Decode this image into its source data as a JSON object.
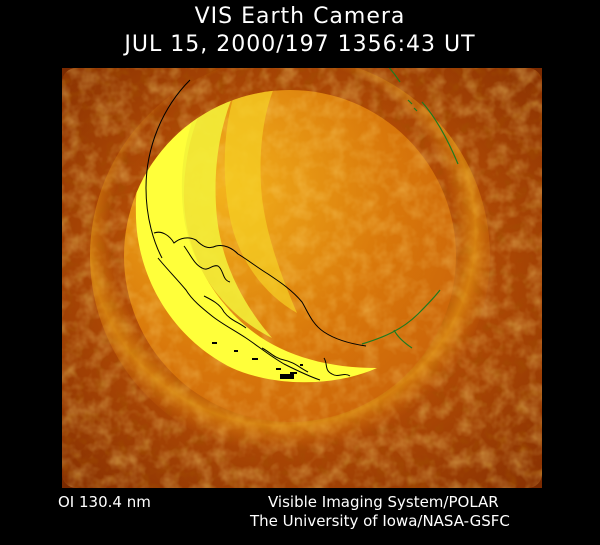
{
  "header": {
    "title": "VIS Earth Camera",
    "timestamp": "JUL 15, 2000/197 1356:43 UT"
  },
  "footer": {
    "band": "OI  130.4 nm",
    "instrument": "Visible Imaging System/POLAR",
    "credit": "The University of Iowa/NASA-GSFC"
  },
  "image": {
    "subject": "earth-globe-ultraviolet",
    "colors": {
      "space": "#000000",
      "background_glow": "#b44a06",
      "dayglow": "#ffff3a",
      "coastline": "#000000",
      "terminator_outline": "#1f7a1f"
    }
  }
}
